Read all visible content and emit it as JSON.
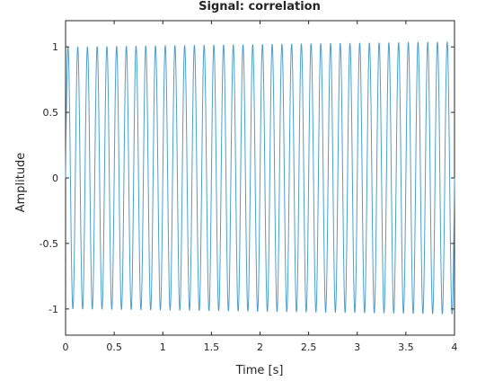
{
  "chart_data": {
    "type": "line",
    "title": "Signal: correlation",
    "xlabel": "Time [s]",
    "ylabel": "Amplitude",
    "xlim": [
      0,
      4
    ],
    "ylim": [
      -1.2,
      1.2
    ],
    "xticks": [
      "0",
      "0.5",
      "1",
      "1.5",
      "2",
      "2.5",
      "3",
      "3.5",
      "4"
    ],
    "yticks": [
      "1",
      "0.5",
      "0",
      "-0.5",
      "-1"
    ],
    "grid": false,
    "legend": false,
    "series": [
      {
        "color": "#4a9fd0",
        "form": "sine",
        "amplitude": 1.0,
        "frequency_hz": 10,
        "phase": 0,
        "x_start": 0,
        "x_end": 4,
        "amplitude_end": 1.04
      }
    ]
  }
}
